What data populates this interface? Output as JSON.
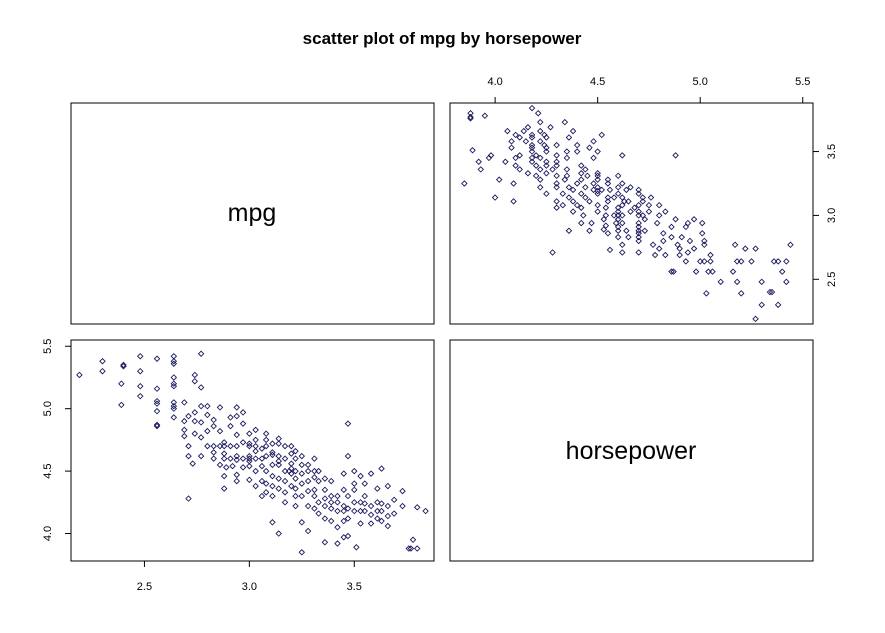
{
  "title": "scatter plot of mpg by horsepower",
  "variables": [
    "mpg",
    "horsepower"
  ],
  "colors": {
    "point": "#1a1a5c",
    "frame": "#000000",
    "background": "#ffffff"
  },
  "chart_data": {
    "type": "scatter",
    "title": "scatter plot of mpg by horsepower",
    "layout": "2x2 scatterplot matrix (pairs plot), diagonal panels show variable names",
    "grid": false,
    "legend": "none",
    "ranges": {
      "mpg": [
        2.15,
        3.88
      ],
      "horsepower": [
        3.78,
        5.55
      ]
    },
    "ticks": {
      "mpg": [
        2.5,
        3.0,
        3.5
      ],
      "mpg_labels": [
        "2.5",
        "3.0",
        "3.5"
      ],
      "horsepower": [
        4.0,
        4.5,
        5.0,
        5.5
      ],
      "horsepower_labels": [
        "4.0",
        "4.5",
        "5.0",
        "5.5"
      ]
    },
    "series": [
      {
        "x_variable": "mpg",
        "y_variable": "horsepower",
        "points": [
          [
            2.19,
            5.27
          ],
          [
            2.3,
            5.3
          ],
          [
            2.3,
            5.38
          ],
          [
            2.4,
            5.35
          ],
          [
            2.4,
            5.34
          ],
          [
            2.39,
            5.2
          ],
          [
            2.39,
            5.03
          ],
          [
            2.48,
            5.42
          ],
          [
            2.48,
            5.3
          ],
          [
            2.48,
            5.18
          ],
          [
            2.48,
            5.1
          ],
          [
            2.56,
            5.4
          ],
          [
            2.56,
            5.16
          ],
          [
            2.56,
            5.06
          ],
          [
            2.56,
            5.04
          ],
          [
            2.56,
            4.87
          ],
          [
            2.56,
            4.86
          ],
          [
            2.56,
            4.98
          ],
          [
            2.64,
            5.42
          ],
          [
            2.64,
            5.38
          ],
          [
            2.64,
            5.36
          ],
          [
            2.64,
            5.25
          ],
          [
            2.64,
            5.2
          ],
          [
            2.64,
            5.18
          ],
          [
            2.64,
            5.05
          ],
          [
            2.64,
            5.02
          ],
          [
            2.64,
            5.0
          ],
          [
            2.64,
            4.93
          ],
          [
            2.69,
            5.05
          ],
          [
            2.69,
            4.9
          ],
          [
            2.69,
            4.83
          ],
          [
            2.69,
            4.78
          ],
          [
            2.71,
            4.62
          ],
          [
            2.71,
            4.7
          ],
          [
            2.71,
            4.28
          ],
          [
            2.71,
            4.94
          ],
          [
            2.74,
            4.97
          ],
          [
            2.74,
            4.9
          ],
          [
            2.74,
            4.8
          ],
          [
            2.74,
            5.27
          ],
          [
            2.74,
            5.22
          ],
          [
            2.77,
            5.44
          ],
          [
            2.77,
            5.17
          ],
          [
            2.77,
            5.02
          ],
          [
            2.77,
            4.89
          ],
          [
            2.77,
            4.77
          ],
          [
            2.77,
            4.62
          ],
          [
            2.8,
            4.95
          ],
          [
            2.8,
            4.82
          ],
          [
            2.8,
            4.7
          ],
          [
            2.8,
            5.02
          ],
          [
            2.83,
            4.91
          ],
          [
            2.83,
            4.86
          ],
          [
            2.83,
            4.6
          ],
          [
            2.83,
            4.7
          ],
          [
            2.83,
            4.65
          ],
          [
            2.86,
            4.7
          ],
          [
            2.86,
            4.55
          ],
          [
            2.86,
            4.82
          ],
          [
            2.86,
            5.01
          ],
          [
            2.88,
            4.73
          ],
          [
            2.88,
            4.7
          ],
          [
            2.88,
            4.64
          ],
          [
            2.88,
            4.46
          ],
          [
            2.88,
            4.36
          ],
          [
            2.88,
            4.6
          ],
          [
            2.89,
            4.53
          ],
          [
            2.91,
            4.7
          ],
          [
            2.91,
            4.6
          ],
          [
            2.91,
            4.93
          ],
          [
            2.91,
            4.86
          ],
          [
            2.94,
            4.59
          ],
          [
            2.94,
            4.7
          ],
          [
            2.94,
            4.62
          ],
          [
            2.94,
            4.42
          ],
          [
            2.94,
            4.47
          ],
          [
            2.94,
            4.79
          ],
          [
            2.94,
            4.94
          ],
          [
            2.94,
            5.01
          ],
          [
            2.97,
            4.73
          ],
          [
            2.97,
            4.6
          ],
          [
            2.97,
            4.53
          ],
          [
            2.97,
            4.88
          ],
          [
            2.97,
            4.97
          ],
          [
            3.0,
            4.7
          ],
          [
            3.0,
            4.62
          ],
          [
            3.0,
            4.54
          ],
          [
            3.0,
            4.43
          ],
          [
            3.0,
            4.6
          ],
          [
            3.0,
            4.72
          ],
          [
            3.0,
            4.8
          ],
          [
            3.03,
            4.7
          ],
          [
            3.03,
            4.6
          ],
          [
            3.03,
            4.66
          ],
          [
            3.03,
            4.5
          ],
          [
            3.03,
            4.38
          ],
          [
            3.03,
            4.83
          ],
          [
            3.03,
            4.75
          ],
          [
            3.06,
            4.68
          ],
          [
            3.06,
            4.6
          ],
          [
            3.06,
            4.54
          ],
          [
            3.06,
            4.3
          ],
          [
            3.06,
            4.42
          ],
          [
            3.08,
            4.75
          ],
          [
            3.08,
            4.7
          ],
          [
            3.08,
            4.62
          ],
          [
            3.08,
            4.5
          ],
          [
            3.08,
            4.4
          ],
          [
            3.08,
            4.33
          ],
          [
            3.08,
            4.8
          ],
          [
            3.11,
            4.72
          ],
          [
            3.11,
            4.65
          ],
          [
            3.11,
            4.55
          ],
          [
            3.11,
            4.46
          ],
          [
            3.11,
            4.38
          ],
          [
            3.11,
            4.3
          ],
          [
            3.11,
            4.09
          ],
          [
            3.11,
            4.63
          ],
          [
            3.14,
            4.72
          ],
          [
            3.14,
            4.62
          ],
          [
            3.14,
            4.55
          ],
          [
            3.14,
            4.44
          ],
          [
            3.14,
            4.36
          ],
          [
            3.14,
            4.0
          ],
          [
            3.14,
            4.76
          ],
          [
            3.17,
            4.7
          ],
          [
            3.17,
            4.6
          ],
          [
            3.17,
            4.5
          ],
          [
            3.17,
            4.42
          ],
          [
            3.17,
            4.33
          ],
          [
            3.17,
            4.25
          ],
          [
            3.2,
            4.64
          ],
          [
            3.2,
            4.56
          ],
          [
            3.2,
            4.52
          ],
          [
            3.2,
            4.48
          ],
          [
            3.2,
            4.38
          ],
          [
            3.2,
            4.7
          ],
          [
            3.22,
            4.6
          ],
          [
            3.22,
            4.5
          ],
          [
            3.22,
            4.44
          ],
          [
            3.22,
            4.36
          ],
          [
            3.22,
            4.3
          ],
          [
            3.22,
            4.22
          ],
          [
            3.22,
            4.66
          ],
          [
            3.25,
            4.55
          ],
          [
            3.25,
            4.48
          ],
          [
            3.25,
            4.4
          ],
          [
            3.25,
            4.3
          ],
          [
            3.25,
            3.85
          ],
          [
            3.25,
            4.09
          ],
          [
            3.25,
            4.62
          ],
          [
            3.28,
            4.55
          ],
          [
            3.28,
            4.5
          ],
          [
            3.28,
            4.42
          ],
          [
            3.28,
            4.34
          ],
          [
            3.28,
            4.22
          ],
          [
            3.28,
            4.02
          ],
          [
            3.31,
            4.6
          ],
          [
            3.31,
            4.5
          ],
          [
            3.31,
            4.45
          ],
          [
            3.31,
            4.35
          ],
          [
            3.31,
            4.2
          ],
          [
            3.31,
            4.3
          ],
          [
            3.33,
            4.5
          ],
          [
            3.33,
            4.42
          ],
          [
            3.33,
            4.25
          ],
          [
            3.33,
            4.16
          ],
          [
            3.36,
            4.35
          ],
          [
            3.36,
            4.28
          ],
          [
            3.36,
            4.22
          ],
          [
            3.36,
            4.12
          ],
          [
            3.36,
            4.44
          ],
          [
            3.39,
            4.3
          ],
          [
            3.39,
            4.25
          ],
          [
            3.39,
            4.2
          ],
          [
            3.39,
            4.1
          ],
          [
            3.39,
            4.42
          ],
          [
            3.42,
            4.3
          ],
          [
            3.42,
            4.25
          ],
          [
            3.42,
            4.18
          ],
          [
            3.42,
            3.92
          ],
          [
            3.42,
            4.05
          ],
          [
            3.45,
            4.35
          ],
          [
            3.45,
            4.22
          ],
          [
            3.45,
            4.18
          ],
          [
            3.45,
            4.1
          ],
          [
            3.45,
            3.97
          ],
          [
            3.45,
            4.48
          ],
          [
            3.47,
            4.3
          ],
          [
            3.47,
            4.2
          ],
          [
            3.47,
            4.12
          ],
          [
            3.47,
            3.98
          ],
          [
            3.47,
            4.88
          ],
          [
            3.47,
            4.62
          ],
          [
            3.5,
            4.35
          ],
          [
            3.5,
            4.25
          ],
          [
            3.5,
            4.18
          ],
          [
            3.5,
            4.5
          ],
          [
            3.5,
            4.4
          ],
          [
            3.53,
            4.25
          ],
          [
            3.53,
            4.18
          ],
          [
            3.53,
            4.08
          ],
          [
            3.53,
            4.46
          ],
          [
            3.55,
            4.24
          ],
          [
            3.55,
            4.18
          ],
          [
            3.55,
            4.3
          ],
          [
            3.55,
            4.4
          ],
          [
            3.58,
            4.22
          ],
          [
            3.58,
            4.15
          ],
          [
            3.58,
            4.08
          ],
          [
            3.58,
            4.48
          ],
          [
            3.61,
            4.18
          ],
          [
            3.61,
            4.25
          ],
          [
            3.61,
            4.12
          ],
          [
            3.61,
            4.36
          ],
          [
            3.63,
            4.1
          ],
          [
            3.63,
            4.18
          ],
          [
            3.63,
            4.24
          ],
          [
            3.63,
            4.52
          ],
          [
            3.66,
            4.22
          ],
          [
            3.66,
            4.14
          ],
          [
            3.66,
            4.06
          ],
          [
            3.66,
            4.38
          ],
          [
            3.69,
            4.16
          ],
          [
            3.69,
            4.27
          ],
          [
            3.73,
            4.34
          ],
          [
            3.73,
            4.22
          ],
          [
            3.76,
            3.88
          ],
          [
            3.77,
            3.88
          ],
          [
            3.78,
            3.95
          ],
          [
            3.8,
            3.88
          ],
          [
            3.8,
            4.21
          ],
          [
            3.84,
            4.18
          ],
          [
            3.51,
            3.89
          ],
          [
            3.36,
            3.93
          ],
          [
            2.73,
            4.56
          ],
          [
            2.92,
            4.54
          ],
          [
            3.19,
            4.5
          ],
          [
            3.0,
            4.58
          ],
          [
            3.14,
            4.58
          ]
        ]
      }
    ]
  }
}
